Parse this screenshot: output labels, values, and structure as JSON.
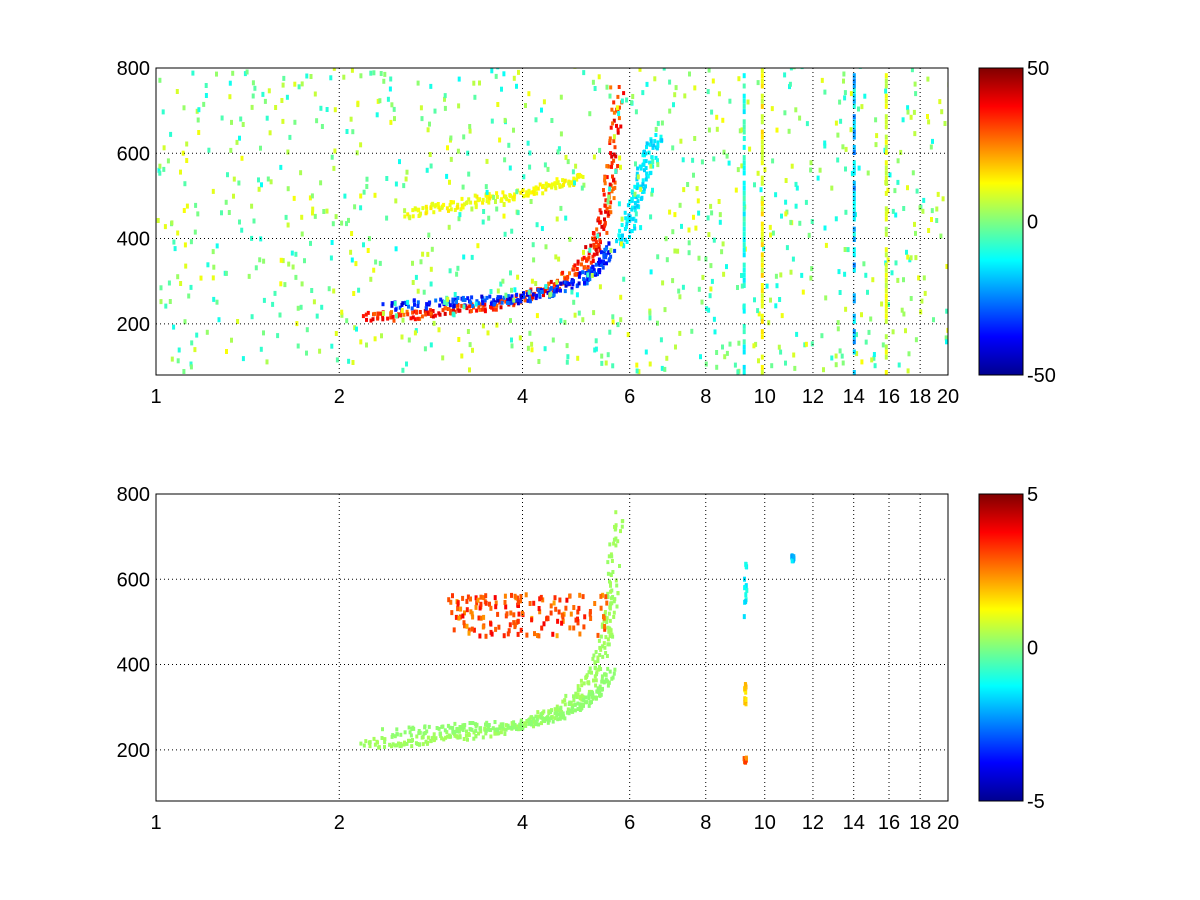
{
  "chart_data": [
    {
      "type": "heatmap",
      "title": "",
      "xlabel": "",
      "ylabel": "",
      "x_ticks": [
        1,
        2,
        4,
        6,
        8,
        10,
        12,
        14,
        16,
        18,
        20
      ],
      "x_tick_labels": [
        "1",
        "2",
        "4",
        "6",
        "8",
        "10",
        "12",
        "14",
        "16",
        "18",
        "20"
      ],
      "y_ticks": [
        200,
        400,
        600,
        800
      ],
      "y_tick_labels": [
        "200",
        "400",
        "600",
        "800"
      ],
      "xlim": [
        1,
        20
      ],
      "ylim": [
        80,
        800
      ],
      "x_scale": "log2",
      "grid": true,
      "colormap": "jet",
      "clim": [
        -50,
        50
      ],
      "colorbar_ticks": [
        50,
        0,
        -50
      ],
      "colorbar_tick_labels": [
        "50",
        "0",
        "-50"
      ],
      "features": [
        {
          "x": [
            2.2,
            2.6,
            3.0,
            3.5,
            4.0,
            4.5,
            5.0,
            5.3,
            5.5,
            5.6,
            5.7
          ],
          "y": [
            210,
            215,
            225,
            235,
            255,
            285,
            330,
            390,
            480,
            580,
            760
          ],
          "value": 42
        },
        {
          "x": [
            2.4,
            3.0,
            3.5,
            4.0,
            4.5,
            5.0,
            5.3,
            5.6
          ],
          "y": [
            235,
            245,
            250,
            255,
            275,
            300,
            330,
            380
          ],
          "value": -42
        },
        {
          "x": [
            2.6,
            3.0,
            3.5,
            4.0,
            4.5,
            5.0
          ],
          "y": [
            455,
            470,
            490,
            500,
            520,
            540
          ],
          "value": 15
        },
        {
          "x": [
            5.8,
            6.0,
            6.2,
            6.4,
            6.6
          ],
          "y": [
            380,
            450,
            520,
            580,
            640
          ],
          "value": -18
        }
      ],
      "stripes": [
        {
          "x": 9.2,
          "value": -10
        },
        {
          "x": 9.85,
          "value": 12
        },
        {
          "x": 13.95,
          "value": -18
        },
        {
          "x": 15.75,
          "value": 8
        }
      ]
    },
    {
      "type": "heatmap",
      "title": "",
      "xlabel": "",
      "ylabel": "",
      "x_ticks": [
        1,
        2,
        4,
        6,
        8,
        10,
        12,
        14,
        16,
        18,
        20
      ],
      "x_tick_labels": [
        "1",
        "2",
        "4",
        "6",
        "8",
        "10",
        "12",
        "14",
        "16",
        "18",
        "20"
      ],
      "y_ticks": [
        200,
        400,
        600,
        800
      ],
      "y_tick_labels": [
        "200",
        "400",
        "600",
        "800"
      ],
      "xlim": [
        1,
        20
      ],
      "ylim": [
        80,
        800
      ],
      "x_scale": "log2",
      "grid": true,
      "colormap": "jet",
      "clim": [
        -5,
        5
      ],
      "colorbar_ticks": [
        5,
        0,
        -5
      ],
      "colorbar_tick_labels": [
        "5",
        "0",
        "-5"
      ],
      "features": [
        {
          "x": [
            2.2,
            2.6,
            3.0,
            3.5,
            4.0,
            4.5,
            5.0,
            5.3,
            5.5,
            5.6,
            5.7
          ],
          "y": [
            210,
            215,
            225,
            235,
            255,
            285,
            330,
            390,
            480,
            580,
            760
          ],
          "value": 0.4
        },
        {
          "x": [
            2.4,
            3.0,
            3.5,
            4.0,
            4.5,
            5.0,
            5.3,
            5.6
          ],
          "y": [
            235,
            245,
            250,
            255,
            275,
            300,
            330,
            380
          ],
          "value": 0.2
        }
      ],
      "clusters": [
        {
          "x_range": [
            3.0,
            5.5
          ],
          "y_range": [
            460,
            560
          ],
          "value": 3.5
        },
        {
          "x": 9.2,
          "y_range": [
            500,
            630
          ],
          "value": -1.5
        },
        {
          "x": 9.2,
          "y_range": [
            300,
            350
          ],
          "value": 2
        },
        {
          "x": 9.2,
          "y_range": [
            165,
            175
          ],
          "value": 3
        },
        {
          "x": 11.0,
          "y_range": [
            635,
            650
          ],
          "value": -2
        }
      ]
    }
  ]
}
